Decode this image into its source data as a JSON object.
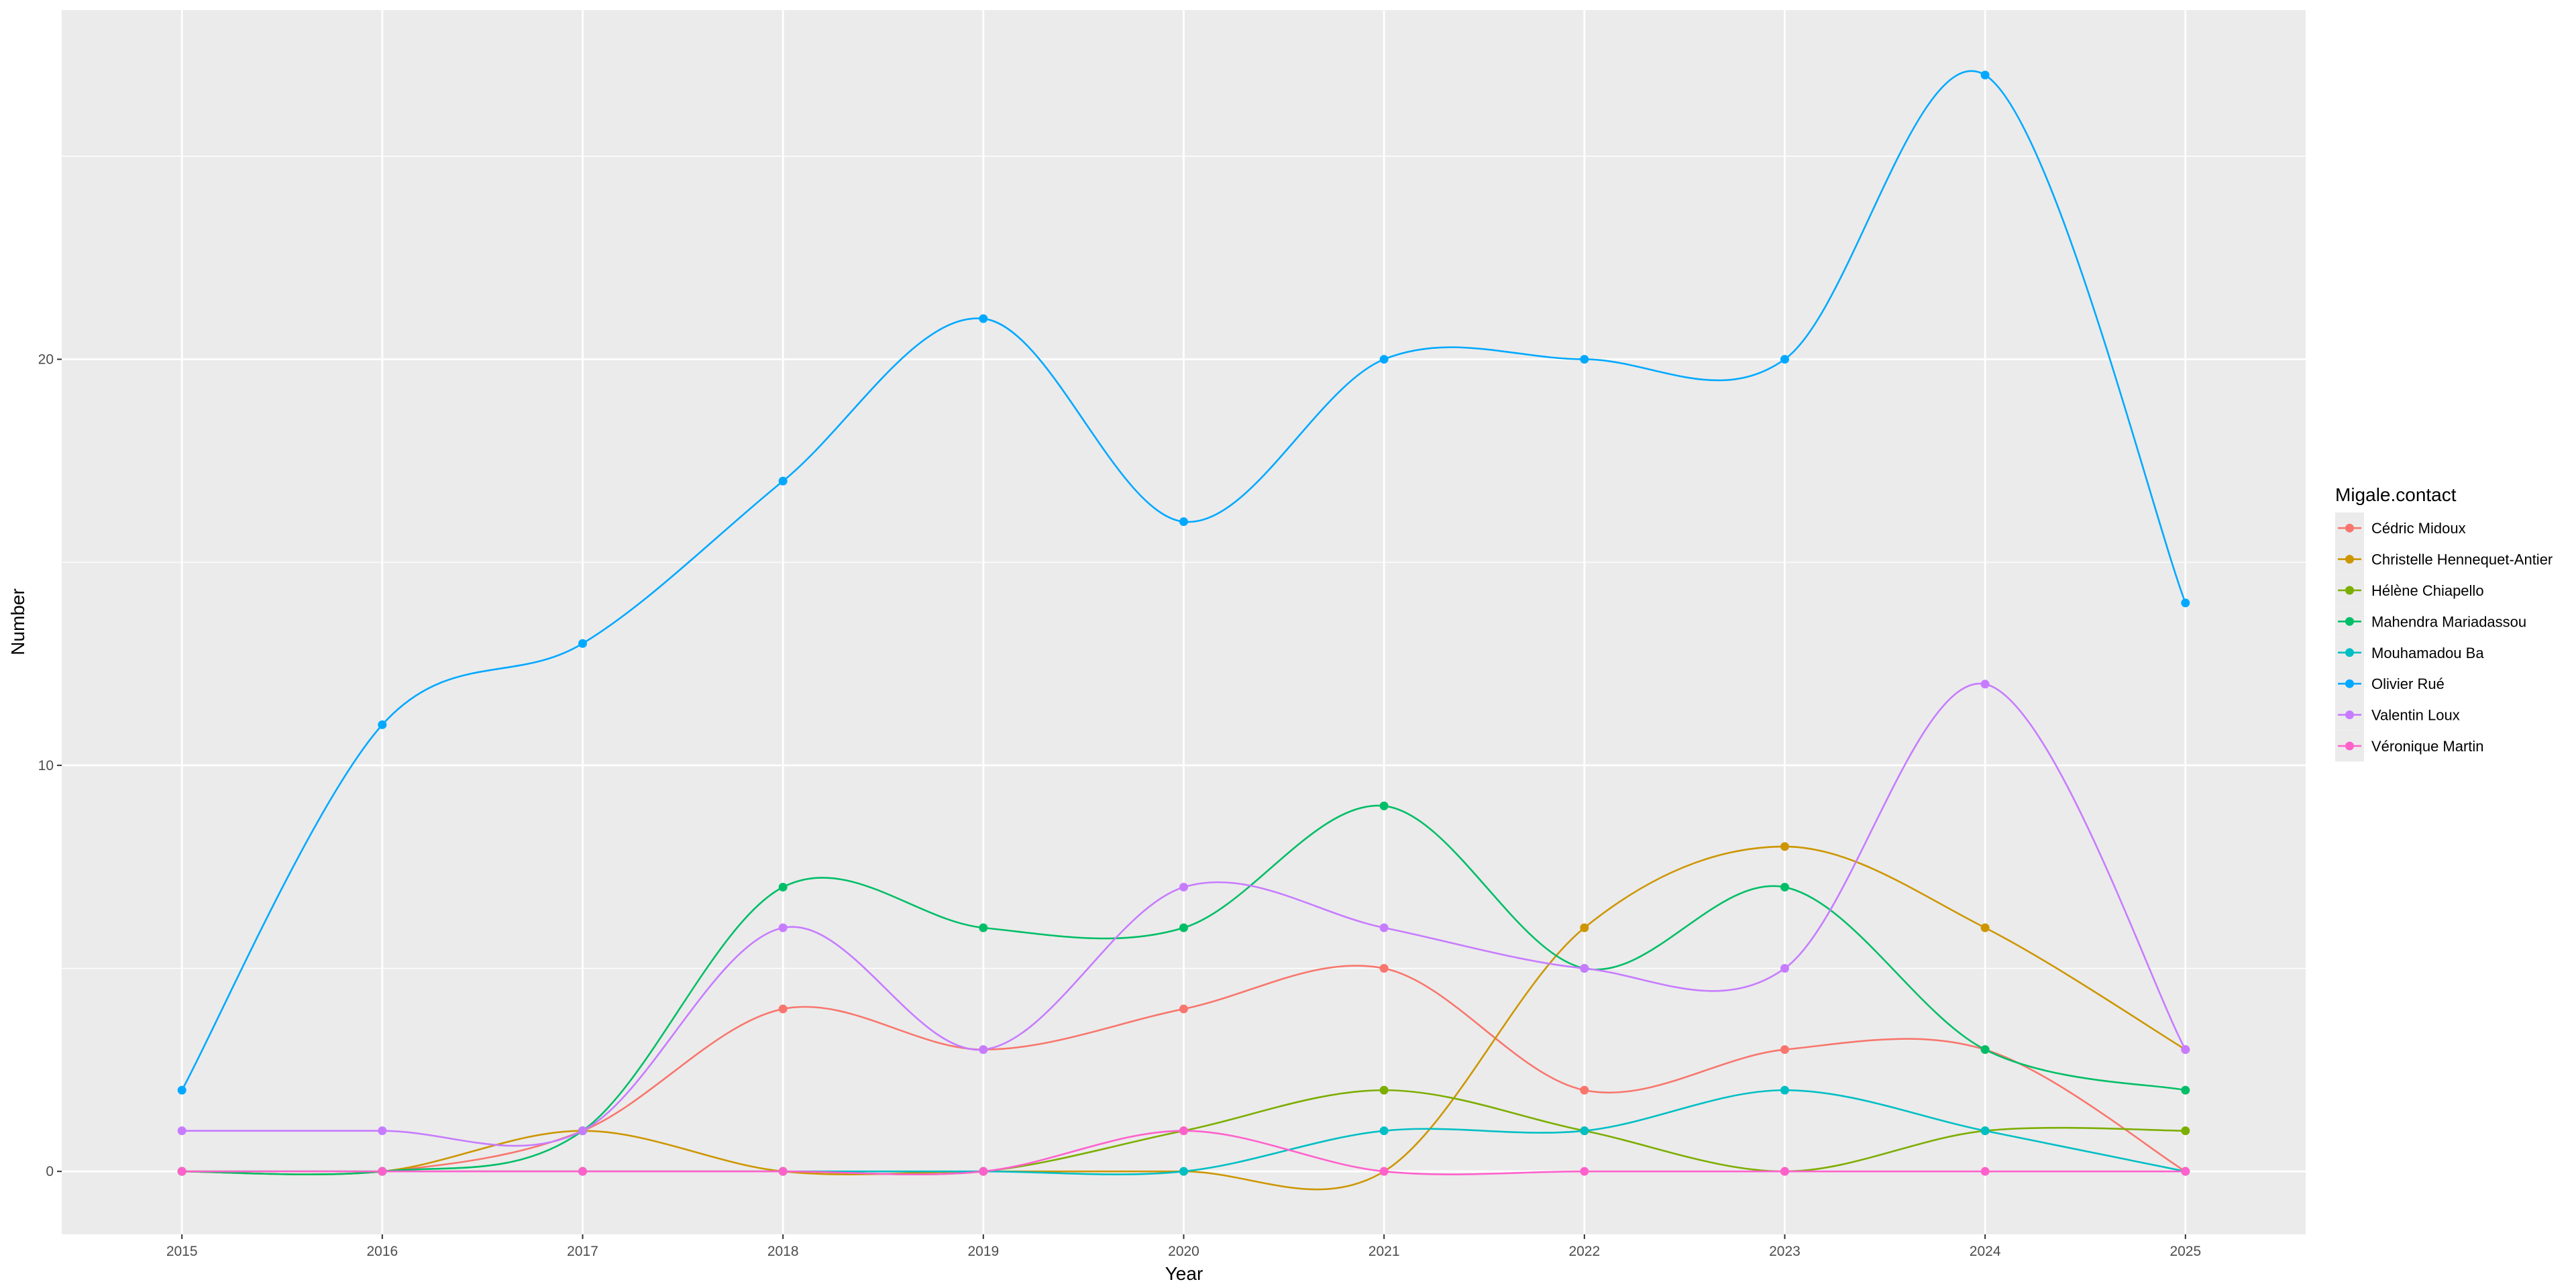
{
  "chart_data": {
    "type": "line",
    "title": "",
    "xlabel": "Year",
    "ylabel": "Number",
    "x": [
      2015,
      2016,
      2017,
      2018,
      2019,
      2020,
      2021,
      2022,
      2023,
      2024,
      2025
    ],
    "x_tick_labels": [
      "2015",
      "2016",
      "2017",
      "2018",
      "2019",
      "2020",
      "2021",
      "2022",
      "2023",
      "2024",
      "2025"
    ],
    "y_ticks": [
      0,
      10,
      20
    ],
    "y_tick_labels": [
      "0",
      "10",
      "20"
    ],
    "xlim": [
      2014.4,
      2025.6
    ],
    "ylim": [
      -1.55,
      28.6
    ],
    "grid": true,
    "legend": {
      "title": "Migale.contact",
      "placement": "right"
    },
    "series": [
      {
        "name": "Cédric Midoux",
        "color": "#F8766D",
        "values": [
          0,
          0,
          1,
          4,
          3,
          4,
          5,
          2,
          3,
          3,
          0
        ]
      },
      {
        "name": "Christelle Hennequet-Antier",
        "color": "#CD9600",
        "values": [
          0,
          0,
          1,
          0,
          0,
          0,
          0,
          6,
          8,
          6,
          3
        ]
      },
      {
        "name": "Hélène Chiapello",
        "color": "#7CAE00",
        "values": [
          0,
          0,
          0,
          0,
          0,
          1,
          2,
          1,
          0,
          1,
          1
        ]
      },
      {
        "name": "Mahendra Mariadassou",
        "color": "#00BE67",
        "values": [
          0,
          0,
          1,
          7,
          6,
          6,
          9,
          5,
          7,
          3,
          2
        ]
      },
      {
        "name": "Mouhamadou Ba",
        "color": "#00BFC4",
        "values": [
          0,
          0,
          0,
          0,
          0,
          0,
          1,
          1,
          2,
          1,
          0
        ]
      },
      {
        "name": "Olivier Rué",
        "color": "#00A9FF",
        "values": [
          2,
          11,
          13,
          17,
          21,
          16,
          20,
          20,
          20,
          27,
          14
        ]
      },
      {
        "name": "Valentin Loux",
        "color": "#C77CFF",
        "values": [
          1,
          1,
          1,
          6,
          3,
          7,
          6,
          5,
          5,
          12,
          3
        ]
      },
      {
        "name": "Véronique Martin",
        "color": "#FF61CC",
        "values": [
          0,
          0,
          0,
          0,
          0,
          1,
          0,
          0,
          0,
          0,
          0
        ]
      }
    ]
  }
}
